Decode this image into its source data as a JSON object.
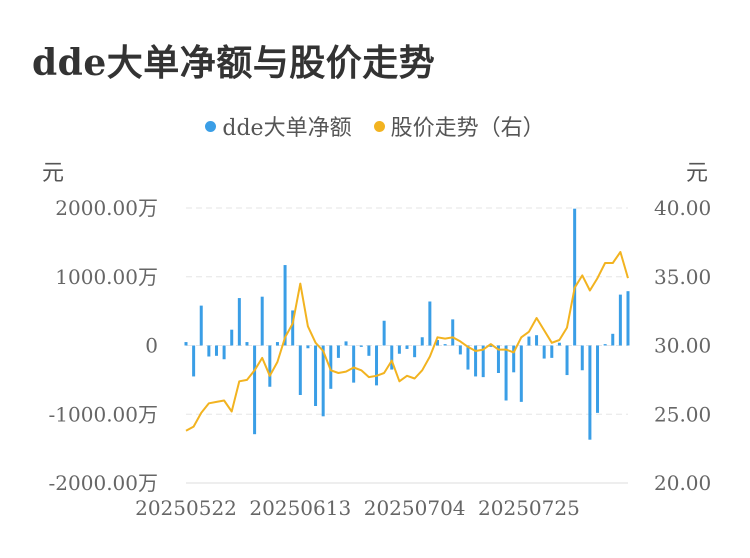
{
  "title": "dde大单净额与股价走势",
  "legend": {
    "dde_label": "dde大单净额",
    "price_label": "股价走势（右）"
  },
  "units": {
    "left": "元",
    "right": "元"
  },
  "colors": {
    "bar": "#3a9ee6",
    "line": "#f2b320",
    "grid": "#e6e6e6"
  },
  "chart_data": {
    "type": "bar",
    "title": "dde大单净额与股价走势",
    "y_left": {
      "ticks": [
        "2000.00万",
        "1000.00万",
        "0",
        "-1000.00万",
        "-2000.00万"
      ],
      "ylim": [
        -2000,
        2000
      ],
      "unit": "元"
    },
    "y_right": {
      "ticks": [
        "40.00",
        "35.00",
        "30.00",
        "25.00",
        "20.00"
      ],
      "ylim": [
        20,
        40
      ],
      "unit": "元"
    },
    "x_tick_labels": [
      "20250522",
      "20250613",
      "20250704",
      "20250725"
    ],
    "x_tick_indices": [
      0,
      15,
      30,
      45
    ],
    "grid": true,
    "legend_position": "top-center",
    "series": [
      {
        "name": "dde大单净额",
        "type": "bar",
        "axis": "left",
        "values": [
          50,
          -450,
          580,
          -160,
          -150,
          -200,
          230,
          690,
          50,
          -1290,
          710,
          -600,
          50,
          1170,
          510,
          -720,
          -40,
          -880,
          -1030,
          -630,
          -180,
          60,
          -540,
          -20,
          -150,
          -580,
          360,
          -350,
          -120,
          -50,
          -170,
          120,
          640,
          80,
          20,
          380,
          -130,
          -350,
          -450,
          -460,
          -20,
          -400,
          -800,
          -390,
          -820,
          130,
          150,
          -190,
          -180,
          40,
          -430,
          1990,
          -360,
          -1370,
          -980,
          20,
          170,
          740,
          790
        ],
        "unit": "万"
      },
      {
        "name": "股价走势（右）",
        "type": "line",
        "axis": "right",
        "values": [
          23.8,
          24.1,
          25.1,
          25.8,
          25.9,
          26.0,
          25.2,
          27.4,
          27.5,
          28.2,
          29.1,
          27.8,
          28.8,
          30.6,
          31.6,
          34.5,
          31.4,
          30.2,
          29.6,
          28.2,
          28.0,
          28.1,
          28.4,
          28.2,
          27.7,
          27.8,
          28.0,
          28.9,
          27.4,
          27.8,
          27.6,
          28.2,
          29.2,
          30.6,
          30.5,
          30.6,
          30.3,
          29.9,
          29.6,
          29.7,
          30.1,
          29.7,
          29.7,
          29.5,
          30.6,
          31.0,
          32.0,
          31.1,
          30.2,
          30.4,
          31.3,
          34.2,
          35.1,
          34.0,
          34.9,
          36.0,
          36.0,
          36.8,
          34.9
        ]
      }
    ]
  }
}
